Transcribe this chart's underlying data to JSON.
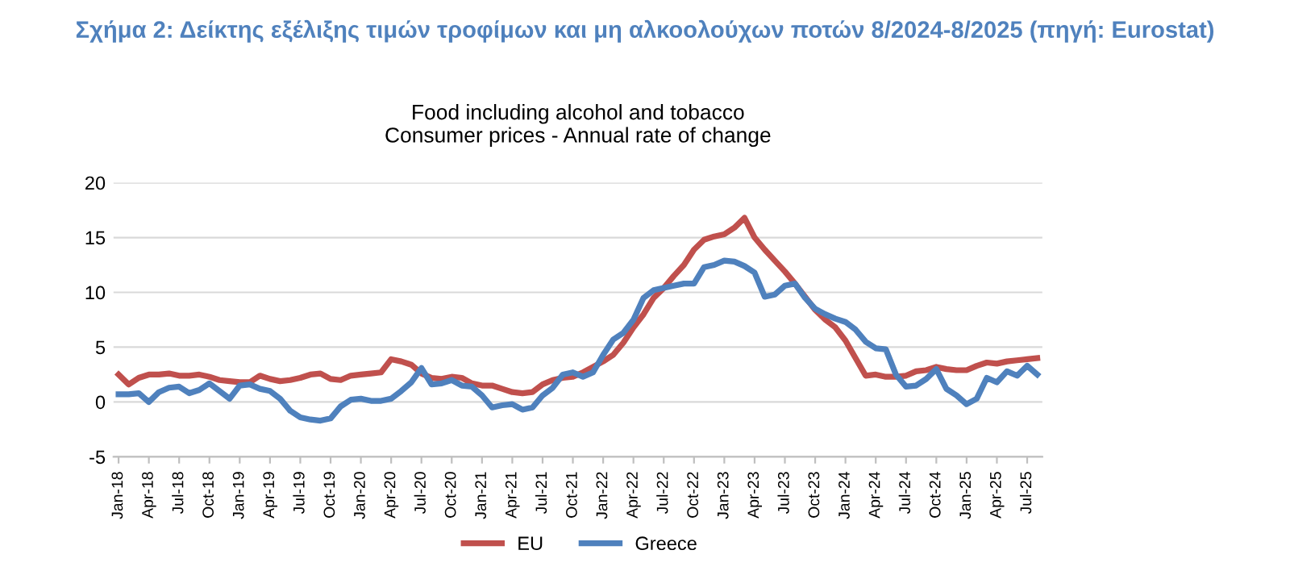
{
  "chart_data": {
    "type": "line",
    "title": "Σχήμα 2: Δείκτης εξέλιξης τιμών τροφίμων και μη αλκοολούχων ποτών 8/2024-8/2025 (πηγή: Eurostat)",
    "subtitle": "Food including alcohol and tobacco\nConsumer prices - Annual rate of change",
    "categories": [
      "Jan-18",
      null,
      null,
      "Apr-18",
      null,
      null,
      "Jul-18",
      null,
      null,
      "Oct-18",
      null,
      null,
      "Jan-19",
      null,
      null,
      "Apr-19",
      null,
      null,
      "Jul-19",
      null,
      null,
      "Oct-19",
      null,
      null,
      "Jan-20",
      null,
      null,
      "Apr-20",
      null,
      null,
      "Jul-20",
      null,
      null,
      "Oct-20",
      null,
      null,
      "Jan-21",
      null,
      null,
      "Apr-21",
      null,
      null,
      "Jul-21",
      null,
      null,
      "Oct-21",
      null,
      null,
      "Jan-22",
      null,
      null,
      "Apr-22",
      null,
      null,
      "Jul-22",
      null,
      null,
      "Oct-22",
      null,
      null,
      "Jan-23",
      null,
      null,
      "Apr-23",
      null,
      null,
      "Jul-23",
      null,
      null,
      "Oct-23",
      null,
      null,
      "Jan-24",
      null,
      null,
      "Apr-24",
      null,
      null,
      "Jul-24",
      null,
      null,
      "Oct-24",
      null,
      null,
      "Jan-25",
      null,
      null,
      "Apr-25",
      null,
      null,
      "Jul-25",
      null
    ],
    "series": [
      {
        "name": "EU",
        "color": "#c0504d",
        "values": [
          2.5,
          1.6,
          2.2,
          2.5,
          2.5,
          2.6,
          2.4,
          2.4,
          2.5,
          2.3,
          2.0,
          1.9,
          1.8,
          1.8,
          2.4,
          2.1,
          1.9,
          2.0,
          2.2,
          2.5,
          2.6,
          2.1,
          2.0,
          2.4,
          2.5,
          2.6,
          2.7,
          3.9,
          3.7,
          3.4,
          2.6,
          2.2,
          2.1,
          2.3,
          2.2,
          1.7,
          1.5,
          1.5,
          1.2,
          0.9,
          0.8,
          0.9,
          1.6,
          2.0,
          2.2,
          2.3,
          2.7,
          3.2,
          3.7,
          4.3,
          5.4,
          6.8,
          8.0,
          9.5,
          10.4,
          11.5,
          12.5,
          13.9,
          14.8,
          15.1,
          15.3,
          15.9,
          16.8,
          15.0,
          13.9,
          12.9,
          11.9,
          10.8,
          9.6,
          8.4,
          7.5,
          6.8,
          5.6,
          4.0,
          2.4,
          2.5,
          2.3,
          2.3,
          2.4,
          2.8,
          2.9,
          3.2,
          3.0,
          2.9,
          2.9,
          3.3,
          3.6,
          3.5,
          3.7,
          3.8,
          3.9,
          4.0
        ]
      },
      {
        "name": "Greece",
        "color": "#4f81bd",
        "values": [
          0.7,
          0.7,
          0.8,
          0.0,
          0.9,
          1.3,
          1.4,
          0.8,
          1.1,
          1.7,
          1.0,
          0.3,
          1.5,
          1.6,
          1.2,
          1.0,
          0.3,
          -0.8,
          -1.4,
          -1.6,
          -1.7,
          -1.5,
          -0.4,
          0.2,
          0.3,
          0.1,
          0.1,
          0.3,
          1.0,
          1.8,
          3.1,
          1.6,
          1.7,
          2.0,
          1.5,
          1.4,
          0.6,
          -0.5,
          -0.3,
          -0.2,
          -0.7,
          -0.5,
          0.6,
          1.3,
          2.5,
          2.7,
          2.3,
          2.7,
          4.3,
          5.7,
          6.3,
          7.5,
          9.5,
          10.2,
          10.4,
          10.6,
          10.8,
          10.8,
          12.3,
          12.5,
          12.9,
          12.8,
          12.4,
          11.8,
          9.6,
          9.8,
          10.6,
          10.8,
          9.5,
          8.5,
          8.0,
          7.6,
          7.3,
          6.6,
          5.5,
          4.9,
          4.8,
          2.5,
          1.4,
          1.5,
          2.1,
          3.0,
          1.2,
          0.6,
          -0.2,
          0.3,
          2.2,
          1.8,
          2.8,
          2.4,
          3.3,
          2.5
        ]
      }
    ],
    "ylim": [
      -5,
      20
    ],
    "yticks": [
      -5,
      0,
      5,
      10,
      15,
      20
    ],
    "grid": "y",
    "legend": "bottom",
    "line_style": "solid",
    "marker": "none"
  }
}
